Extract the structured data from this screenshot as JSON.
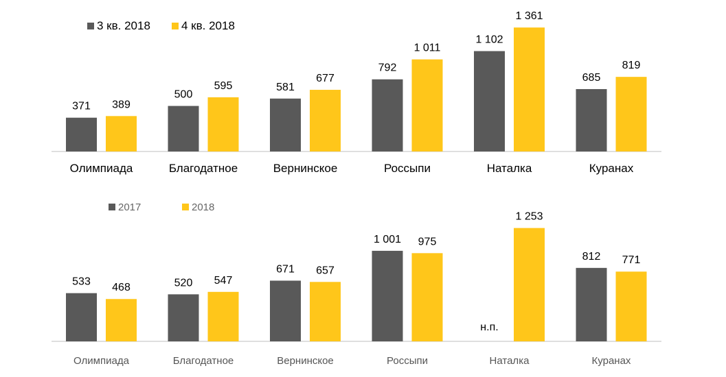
{
  "chart_data": [
    {
      "type": "bar",
      "categories": [
        "Олимпиада",
        "Благодатное",
        "Вернинское",
        "Россыпи",
        "Наталка",
        "Куранах"
      ],
      "series": [
        {
          "name": "3 кв. 2018",
          "values": [
            371,
            500,
            581,
            792,
            1102,
            685
          ],
          "labels": [
            "371",
            "500",
            "581",
            "792",
            "1 102",
            "685"
          ],
          "color": "#595959"
        },
        {
          "name": "4 кв. 2018",
          "values": [
            389,
            595,
            677,
            1011,
            1361,
            819
          ],
          "labels": [
            "389",
            "595",
            "677",
            "1 011",
            "1 361",
            "819"
          ],
          "color": "#FFC61A"
        }
      ],
      "ylim": [
        0,
        1520
      ],
      "legend_position": "top-left",
      "grid": false
    },
    {
      "type": "bar",
      "categories": [
        "Олимпиада",
        "Благодатное",
        "Вернинское",
        "Россыпи",
        "Наталка",
        "Куранах"
      ],
      "series": [
        {
          "name": "2017",
          "values": [
            533,
            520,
            671,
            1001,
            null,
            812
          ],
          "labels": [
            "533",
            "520",
            "671",
            "1 001",
            "н.п.",
            "812"
          ],
          "color": "#595959"
        },
        {
          "name": "2018",
          "values": [
            468,
            547,
            657,
            975,
            1253,
            771
          ],
          "labels": [
            "468",
            "547",
            "657",
            "975",
            "1 253",
            "771"
          ],
          "color": "#FFC61A"
        }
      ],
      "ylim": [
        0,
        1470
      ],
      "legend_position": "top-left",
      "grid": false
    }
  ]
}
